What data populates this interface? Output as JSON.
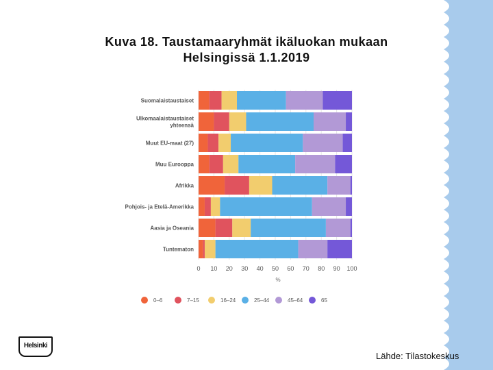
{
  "title_line1": "Kuva 18. Taustamaaryhmät ikäluokan mukaan",
  "title_line2": "Helsingissä 1.1.2019",
  "source": "Lähde: Tilastokeskus",
  "logo_text": "Helsinki",
  "colors": {
    "deco_blue": "#a8cbec",
    "grid": "#e6e6e6"
  },
  "chart_data": {
    "type": "bar",
    "orientation": "horizontal",
    "stacked": true,
    "categories": [
      "Suomalaistaustaiset",
      "Ulkomaalaistaustaiset yhteensä",
      "Muut EU-maat (27)",
      "Muu Eurooppa",
      "Afrikka",
      "Pohjois- ja Etelä-Amerikka",
      "Aasia ja Oseania",
      "Tuntematon"
    ],
    "series": [
      {
        "name": "0–6",
        "color": "#f0643a",
        "values": [
          7,
          10,
          6,
          7,
          17,
          4,
          11,
          3
        ]
      },
      {
        "name": "7–15",
        "color": "#e0535e",
        "values": [
          8,
          10,
          7,
          9,
          16,
          4,
          11,
          1
        ]
      },
      {
        "name": "16–24",
        "color": "#f2cd6e",
        "values": [
          10,
          11,
          8,
          10,
          15,
          6,
          12,
          7
        ]
      },
      {
        "name": "25–44",
        "color": "#5ab0e6",
        "values": [
          32,
          44,
          47,
          37,
          36,
          60,
          49,
          54
        ]
      },
      {
        "name": "45–64",
        "color": "#b299d6",
        "values": [
          24,
          21,
          26,
          26,
          15,
          22,
          16,
          19
        ]
      },
      {
        "name": "65",
        "color": "#7458d8",
        "values": [
          19,
          4,
          6,
          11,
          1,
          4,
          1,
          16
        ]
      }
    ],
    "x_ticks": [
      "0",
      "10",
      "20",
      "30",
      "40",
      "50",
      "60",
      "70",
      "80",
      "90",
      "100"
    ],
    "xlim": [
      0,
      100
    ],
    "xlabel": "%",
    "grid": true,
    "legend_position": "bottom"
  }
}
